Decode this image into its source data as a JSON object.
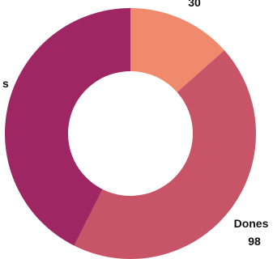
{
  "chart_data": {
    "type": "pie",
    "donut": true,
    "slices": [
      {
        "label": "",
        "value": 30,
        "value_text": "30",
        "color": "#ef8a6c"
      },
      {
        "label": "Dones",
        "value": 98,
        "value_text": "98",
        "color": "#c85468"
      },
      {
        "label": "s",
        "value": 95,
        "value_text": "",
        "color": "#9e2763"
      }
    ]
  }
}
